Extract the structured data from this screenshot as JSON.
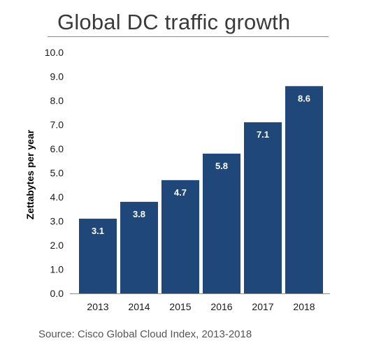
{
  "chart_data": {
    "type": "bar",
    "title": "Global DC traffic growth",
    "ylabel": "Zettabytes per year",
    "xlabel": "",
    "categories": [
      "2013",
      "2014",
      "2015",
      "2016",
      "2017",
      "2018"
    ],
    "values": [
      3.1,
      3.8,
      4.7,
      5.8,
      7.1,
      8.6
    ],
    "data_labels": [
      "3.1",
      "3.8",
      "4.7",
      "5.8",
      "7.1",
      "8.6"
    ],
    "ylim": [
      0,
      10
    ],
    "yticks": [
      "0.0",
      "1.0",
      "2.0",
      "3.0",
      "4.0",
      "5.0",
      "6.0",
      "7.0",
      "8.0",
      "9.0",
      "10.0"
    ],
    "grid": false,
    "bar_color": "#1f477a",
    "source": "Source: Cisco Global Cloud Index, 2013-2018"
  }
}
